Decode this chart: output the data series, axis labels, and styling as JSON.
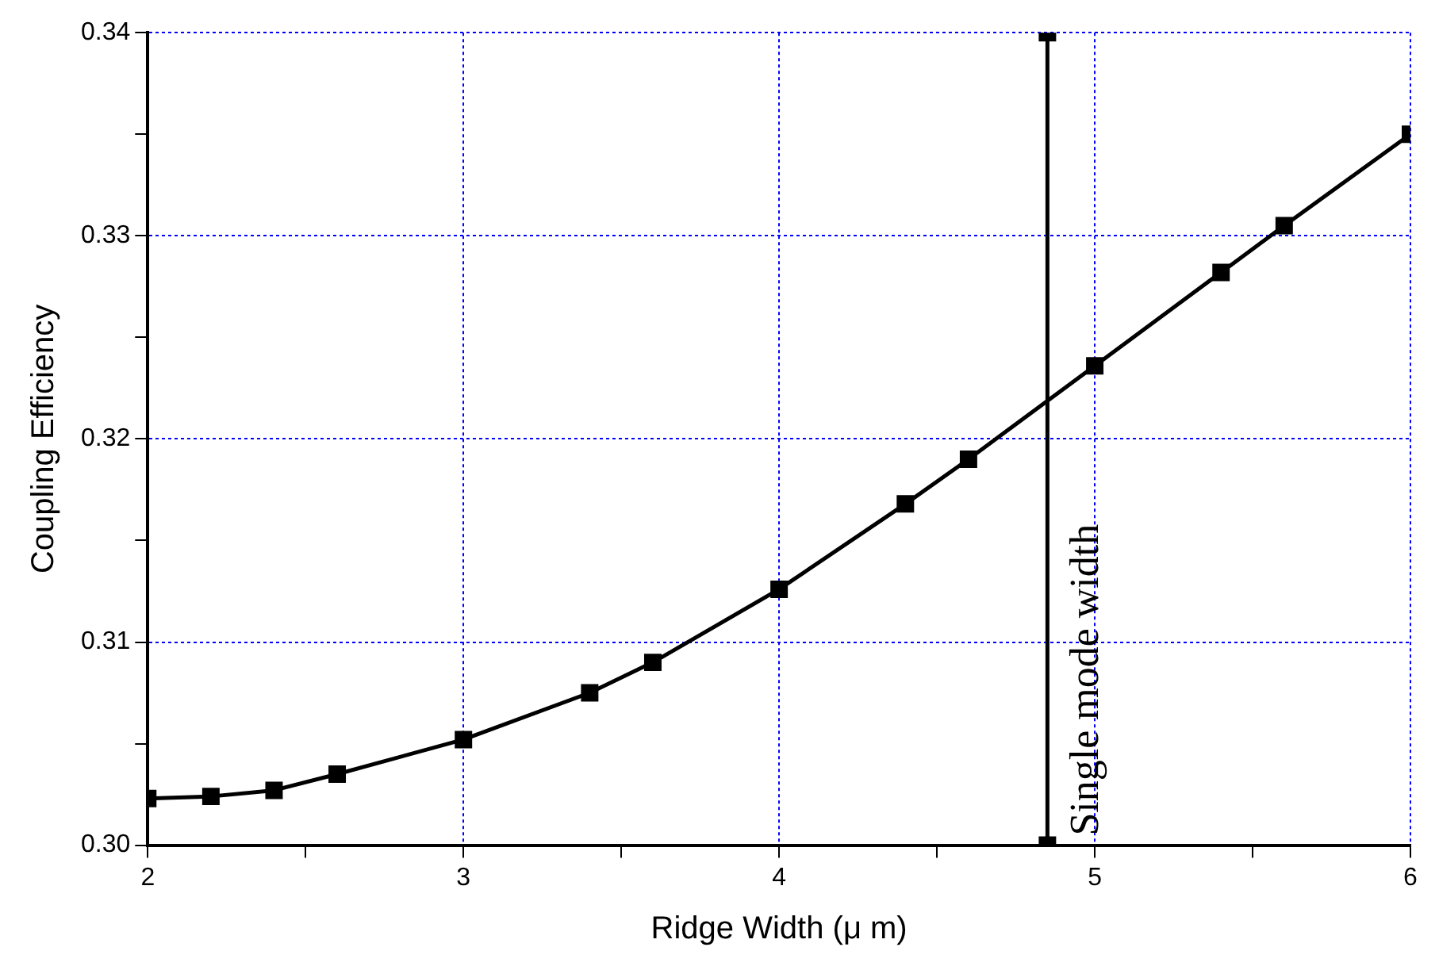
{
  "chart_data": {
    "type": "line",
    "xlabel": "Ridge Width (μ m)",
    "ylabel": "Coupling Efficiency",
    "series": [
      {
        "x": [
          2,
          2.2,
          2.4,
          2.6,
          3,
          3.4,
          3.6,
          4,
          4.4,
          4.6,
          5,
          5.4,
          5.6,
          6
        ],
        "values": [
          0.3023,
          0.3024,
          0.3027,
          0.3035,
          0.3052,
          0.3075,
          0.309,
          0.3126,
          0.3168,
          0.319,
          0.3236,
          0.3282,
          0.3305,
          0.335
        ],
        "color": "#000000"
      },
      {
        "x": [
          4.85,
          4.85
        ],
        "values": [
          0.3,
          0.34
        ],
        "color": "#000000"
      }
    ],
    "annotations": [
      {
        "text": "Single mode width",
        "x": 4.85,
        "y": 0.3
      }
    ],
    "xlim": [
      2,
      6
    ],
    "xticks": [
      2,
      {
        "value": 2.5,
        "label": null
      },
      3,
      {
        "value": 3.5,
        "label": null
      },
      4,
      {
        "value": 4.5,
        "label": null
      },
      5,
      {
        "value": 5.5,
        "label": null
      },
      6
    ],
    "ylim": [
      0.3,
      0.34
    ],
    "yticks": [
      {
        "value": 0.3,
        "label": "0.30"
      },
      {
        "value": 0.305,
        "label": null
      },
      0.31,
      {
        "value": 0.315,
        "label": null
      },
      0.32,
      {
        "value": 0.325,
        "label": null
      },
      0.33,
      {
        "value": 0.335,
        "label": null
      },
      0.34
    ],
    "grid": true,
    "marker": "square",
    "line_style": "solid",
    "legend": false
  }
}
